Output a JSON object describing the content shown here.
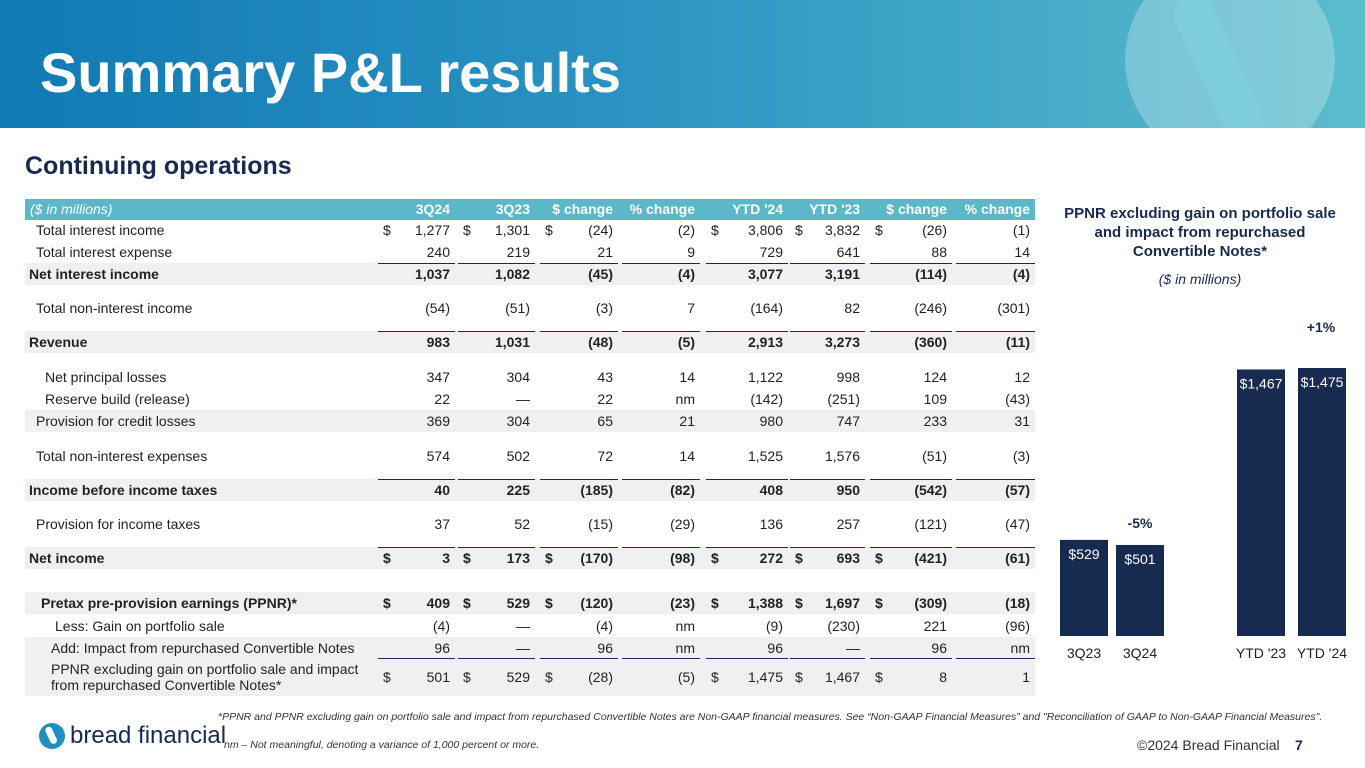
{
  "header": {
    "title": "Summary P&L results",
    "subtitle": "Continuing operations"
  },
  "table": {
    "columns": [
      "($ in millions)",
      "3Q24",
      "3Q23",
      "$ change",
      "% change",
      "YTD '24",
      "YTD '23",
      "$ change",
      "% change"
    ],
    "rows": [
      {
        "label": "Total interest income",
        "cells": [
          {
            "sign": "$",
            "text": "1,277"
          },
          {
            "sign": "$",
            "text": "1,301"
          },
          {
            "sign": "$",
            "text": "(24)"
          },
          "(2)",
          {
            "sign": "$",
            "text": "3,806"
          },
          {
            "sign": "$",
            "text": "3,832"
          },
          {
            "sign": "$",
            "text": "(26)"
          },
          "(1)"
        ]
      },
      {
        "label": "Total interest expense",
        "cells": [
          "240",
          "219",
          "21",
          "9",
          "729",
          "641",
          "88",
          "14"
        ]
      },
      {
        "label": "Net interest income",
        "cells": [
          "1,037",
          "1,082",
          "(45)",
          "(4)",
          "3,077",
          "3,191",
          "(114)",
          "(4)"
        ]
      },
      {
        "label": "Total non-interest income",
        "cells": [
          "(54)",
          "(51)",
          "(3)",
          "7",
          "(164)",
          "82",
          "(246)",
          "(301)"
        ]
      },
      {
        "label": "Revenue",
        "cells": [
          "983",
          "1,031",
          "(48)",
          "(5)",
          "2,913",
          "3,273",
          "(360)",
          "(11)"
        ]
      },
      {
        "label": "Net principal losses",
        "cells": [
          "347",
          "304",
          "43",
          "14",
          "1,122",
          "998",
          "124",
          "12"
        ]
      },
      {
        "label": "Reserve build (release)",
        "cells": [
          "22",
          "—",
          "22",
          "nm",
          "(142)",
          "(251)",
          "109",
          "(43)"
        ]
      },
      {
        "label": "Provision for credit losses",
        "cells": [
          "369",
          "304",
          "65",
          "21",
          "980",
          "747",
          "233",
          "31"
        ]
      },
      {
        "label": "Total non-interest expenses",
        "cells": [
          "574",
          "502",
          "72",
          "14",
          "1,525",
          "1,576",
          "(51)",
          "(3)"
        ]
      },
      {
        "label": "Income before income taxes",
        "cells": [
          "40",
          "225",
          "(185)",
          "(82)",
          "408",
          "950",
          "(542)",
          "(57)"
        ]
      },
      {
        "label": "Provision for income taxes",
        "cells": [
          "37",
          "52",
          "(15)",
          "(29)",
          "136",
          "257",
          "(121)",
          "(47)"
        ]
      },
      {
        "label": "Net income",
        "cells": [
          {
            "sign": "$",
            "text": "3"
          },
          {
            "sign": "$",
            "text": "173"
          },
          {
            "sign": "$",
            "text": "(170)"
          },
          "(98)",
          {
            "sign": "$",
            "text": "272"
          },
          {
            "sign": "$",
            "text": "693"
          },
          {
            "sign": "$",
            "text": "(421)"
          },
          "(61)"
        ]
      },
      {
        "label": "Pretax pre-provision earnings (PPNR)*",
        "cells": [
          {
            "sign": "$",
            "text": "409"
          },
          {
            "sign": "$",
            "text": "529"
          },
          {
            "sign": "$",
            "text": "(120)"
          },
          "(23)",
          {
            "sign": "$",
            "text": "1,388"
          },
          {
            "sign": "$",
            "text": "1,697"
          },
          {
            "sign": "$",
            "text": "(309)"
          },
          "(18)"
        ]
      },
      {
        "label": "Less: Gain on portfolio sale",
        "cells": [
          "(4)",
          "—",
          "(4)",
          "nm",
          "(9)",
          "(230)",
          "221",
          "(96)"
        ]
      },
      {
        "label": "Add: Impact from repurchased Convertible Notes",
        "cells": [
          "96",
          "—",
          "96",
          "nm",
          "96",
          "—",
          "96",
          "nm"
        ]
      },
      {
        "label": "PPNR excluding gain on portfolio sale and impact\nfrom repurchased Convertible Notes*",
        "cells": [
          {
            "sign": "$",
            "text": "501"
          },
          {
            "sign": "$",
            "text": "529"
          },
          {
            "sign": "$",
            "text": "(28)"
          },
          "(5)",
          {
            "sign": "$",
            "text": "1,475"
          },
          {
            "sign": "$",
            "text": "1,467"
          },
          {
            "sign": "$",
            "text": "8"
          },
          "1"
        ]
      }
    ]
  },
  "chart": {
    "type": "bar",
    "title": "PPNR excluding gain on portfolio sale and impact from repurchased Convertible Notes*",
    "subtitle": "($ in millions)",
    "categories": [
      "3Q23",
      "3Q24",
      "YTD '23",
      "YTD '24"
    ],
    "values": [
      529,
      501,
      1467,
      1475
    ],
    "value_labels": [
      "$529",
      "$501",
      "$1,467",
      "$1,475"
    ],
    "color": "#172a4f",
    "annotations": [
      "-5%",
      "+1%"
    ]
  },
  "footer": {
    "logo": "bread financial",
    "notes": [
      "*PPNR and PPNR excluding gain on portfolio sale and impact from repurchased Convertible Notes are Non-GAAP financial measures. See “Non-GAAP Financial Measures” and \"Reconciliation of GAAP to Non-GAAP Financial Measures\".",
      "nm – Not meaningful, denoting a variance of 1,000 percent or more."
    ],
    "copyright": "©2024 Bread Financial",
    "page": "7"
  }
}
